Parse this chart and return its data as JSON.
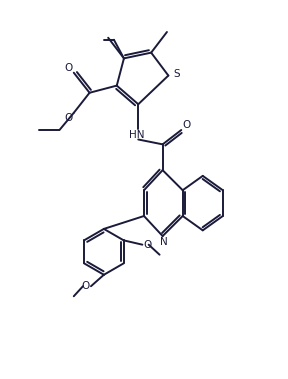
{
  "bg_color": "#ffffff",
  "line_color": "#1a1a3a",
  "line_width": 1.4,
  "figsize": [
    2.88,
    3.79
  ],
  "dpi": 100,
  "xlim": [
    0,
    10
  ],
  "ylim": [
    0,
    13.15
  ]
}
